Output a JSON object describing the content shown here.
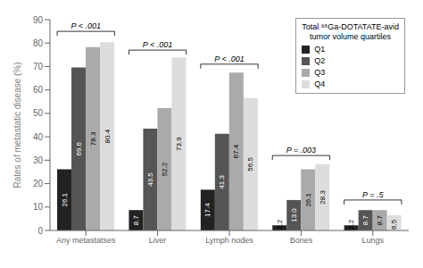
{
  "chart_data": {
    "type": "bar",
    "categories": [
      "Any metastatses",
      "Liver",
      "Lymph nodes",
      "Bones",
      "Lungs"
    ],
    "series": [
      {
        "name": "Q1",
        "color": "#222222",
        "values": [
          26.1,
          8.7,
          17.4,
          2.2,
          2.2
        ]
      },
      {
        "name": "Q2",
        "color": "#555555",
        "values": [
          69.6,
          43.5,
          41.3,
          13.0,
          8.7
        ],
        "value_labels": [
          "69.6",
          "43.5",
          "41.3",
          "13.0",
          "8.7"
        ]
      },
      {
        "name": "Q3",
        "color": "#aaaaaa",
        "values": [
          78.3,
          52.2,
          67.4,
          26.1,
          8.7
        ]
      },
      {
        "name": "Q4",
        "color": "#dddddd",
        "values": [
          80.4,
          73.9,
          56.5,
          28.3,
          6.5
        ]
      }
    ],
    "ylabel": "Rates of metastatic disease (%)",
    "ylim": [
      0,
      90
    ],
    "yticks": [
      0,
      10,
      20,
      30,
      40,
      50,
      60,
      70,
      80,
      90
    ],
    "data_labels": true,
    "grid": false,
    "legend": "upper right",
    "legend_title": "Total ⁶⁸Ga-DOTATATE-avid\ntumor volume quartiles",
    "annotations": [
      {
        "text": "P < .001",
        "category": "Any metastatses",
        "y": 85
      },
      {
        "text": "P < .001",
        "category": "Liver",
        "y": 77
      },
      {
        "text": "P < .001",
        "category": "Lymph nodes",
        "y": 71
      },
      {
        "text": "P = .003",
        "category": "Bones",
        "y": 32
      },
      {
        "text": "P = .5",
        "category": "Lungs",
        "y": 13
      }
    ]
  }
}
